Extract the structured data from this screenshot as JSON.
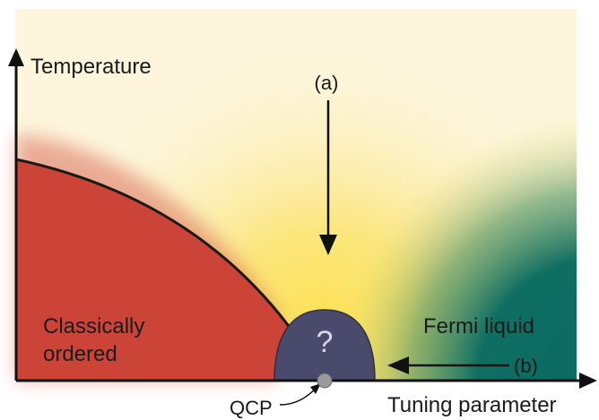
{
  "axes": {
    "y_label": "Temperature",
    "x_label": "Tuning parameter"
  },
  "regions": {
    "ordered_line1": "Classically",
    "ordered_line2": "ordered",
    "fermi_liquid": "Fermi liquid",
    "unknown_dome": "?"
  },
  "arrows": {
    "a_label": "(a)",
    "b_label": "(b)"
  },
  "point": {
    "label": "QCP"
  },
  "colors": {
    "ordered": "#cc4437",
    "fermi_liquid": "#0b6b61",
    "critical_glow": "#fbe25a",
    "background": "#fdf6dc",
    "dome": "#4a4a6c"
  }
}
